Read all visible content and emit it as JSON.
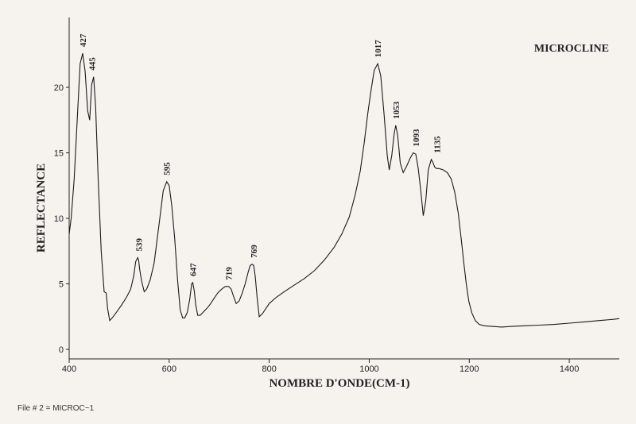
{
  "chart_data": {
    "type": "line",
    "title": "MICROCLINE",
    "xlabel": "NOMBRE D'ONDE(CM-1)",
    "ylabel": "REFLECTANCE",
    "xlim": [
      400,
      1500
    ],
    "ylim": [
      0,
      24
    ],
    "x_ticks": [
      400,
      600,
      800,
      1000,
      1200,
      1400
    ],
    "y_ticks": [
      0,
      5,
      10,
      15,
      20
    ],
    "x_tick_labels": [
      "400",
      "600",
      "800",
      "1000",
      "1200",
      "1400"
    ],
    "y_tick_labels": [
      "0",
      "5",
      "10",
      "15",
      "20"
    ],
    "grid": false,
    "series": [
      {
        "x": [
          400,
          404,
          410,
          416,
          422,
          427,
          432,
          437,
          441,
          445,
          449,
          453,
          458,
          464,
          470,
          474,
          477,
          481,
          486,
          494,
          505,
          515,
          523,
          529,
          533,
          537,
          539,
          541,
          545,
          550,
          555,
          562,
          570,
          580,
          588,
          595,
          600,
          605,
          611,
          617,
          622,
          627,
          631,
          636,
          641,
          645,
          647,
          650,
          653,
          657,
          662,
          667,
          672,
          677,
          683,
          690,
          697,
          705,
          712,
          719,
          724,
          729,
          734,
          740,
          746,
          752,
          758,
          762,
          766,
          769,
          772,
          776,
          780,
          786,
          793,
          800,
          815,
          830,
          850,
          870,
          890,
          910,
          930,
          945,
          960,
          972,
          982,
          990,
          997,
          1003,
          1010,
          1017,
          1023,
          1030,
          1036,
          1040,
          1045,
          1050,
          1053,
          1057,
          1062,
          1068,
          1075,
          1082,
          1088,
          1093,
          1098,
          1103,
          1108,
          1113,
          1118,
          1124,
          1127,
          1131,
          1135,
          1140,
          1148,
          1156,
          1164,
          1171,
          1178,
          1184,
          1189,
          1194,
          1199,
          1205,
          1212,
          1220,
          1230,
          1245,
          1265,
          1285,
          1310,
          1340,
          1370,
          1400,
          1430,
          1460,
          1490,
          1500
        ],
        "y": [
          8.8,
          10.0,
          13.0,
          17.5,
          21.8,
          22.6,
          21.2,
          18.2,
          17.5,
          20.2,
          20.8,
          18.5,
          13.0,
          7.5,
          4.4,
          4.3,
          3.1,
          2.2,
          2.4,
          2.8,
          3.4,
          4.0,
          4.6,
          5.6,
          6.7,
          7.0,
          6.8,
          6.1,
          5.2,
          4.4,
          4.6,
          5.3,
          6.6,
          9.6,
          12.1,
          12.8,
          12.5,
          11.0,
          8.5,
          5.2,
          3.0,
          2.4,
          2.4,
          2.8,
          3.8,
          5.0,
          5.1,
          4.5,
          3.4,
          2.6,
          2.6,
          2.8,
          3.0,
          3.2,
          3.5,
          3.9,
          4.3,
          4.6,
          4.8,
          4.8,
          4.6,
          4.0,
          3.5,
          3.7,
          4.3,
          5.0,
          5.9,
          6.4,
          6.5,
          6.4,
          5.6,
          3.9,
          2.5,
          2.7,
          3.1,
          3.5,
          4.0,
          4.4,
          4.9,
          5.4,
          6.0,
          6.8,
          7.8,
          8.8,
          10.1,
          11.8,
          13.6,
          15.8,
          18.0,
          19.6,
          21.3,
          21.8,
          20.9,
          17.8,
          14.8,
          13.7,
          14.8,
          16.5,
          17.1,
          16.3,
          14.2,
          13.5,
          14.0,
          14.6,
          15.0,
          14.9,
          13.8,
          12.1,
          10.2,
          11.3,
          13.7,
          14.5,
          14.3,
          13.9,
          13.8,
          13.8,
          13.7,
          13.5,
          13.0,
          12.0,
          10.4,
          8.4,
          6.6,
          5.0,
          3.7,
          2.8,
          2.2,
          1.9,
          1.8,
          1.75,
          1.7,
          1.75,
          1.8,
          1.85,
          1.9,
          2.0,
          2.1,
          2.2,
          2.3,
          2.35
        ]
      }
    ],
    "peak_labels": [
      {
        "x": 427,
        "y": 22.6,
        "label": "427"
      },
      {
        "x": 445,
        "y": 20.8,
        "label": "445"
      },
      {
        "x": 539,
        "y": 7.0,
        "label": "539"
      },
      {
        "x": 595,
        "y": 12.8,
        "label": "595"
      },
      {
        "x": 647,
        "y": 5.1,
        "label": "647"
      },
      {
        "x": 719,
        "y": 4.8,
        "label": "719"
      },
      {
        "x": 769,
        "y": 6.5,
        "label": "769"
      },
      {
        "x": 1017,
        "y": 21.8,
        "label": "1017"
      },
      {
        "x": 1053,
        "y": 17.1,
        "label": "1053"
      },
      {
        "x": 1093,
        "y": 15.0,
        "label": "1093"
      },
      {
        "x": 1135,
        "y": 14.5,
        "label": "1135"
      }
    ]
  },
  "footer": {
    "file_label": "File # 2 = MICROC~1"
  }
}
